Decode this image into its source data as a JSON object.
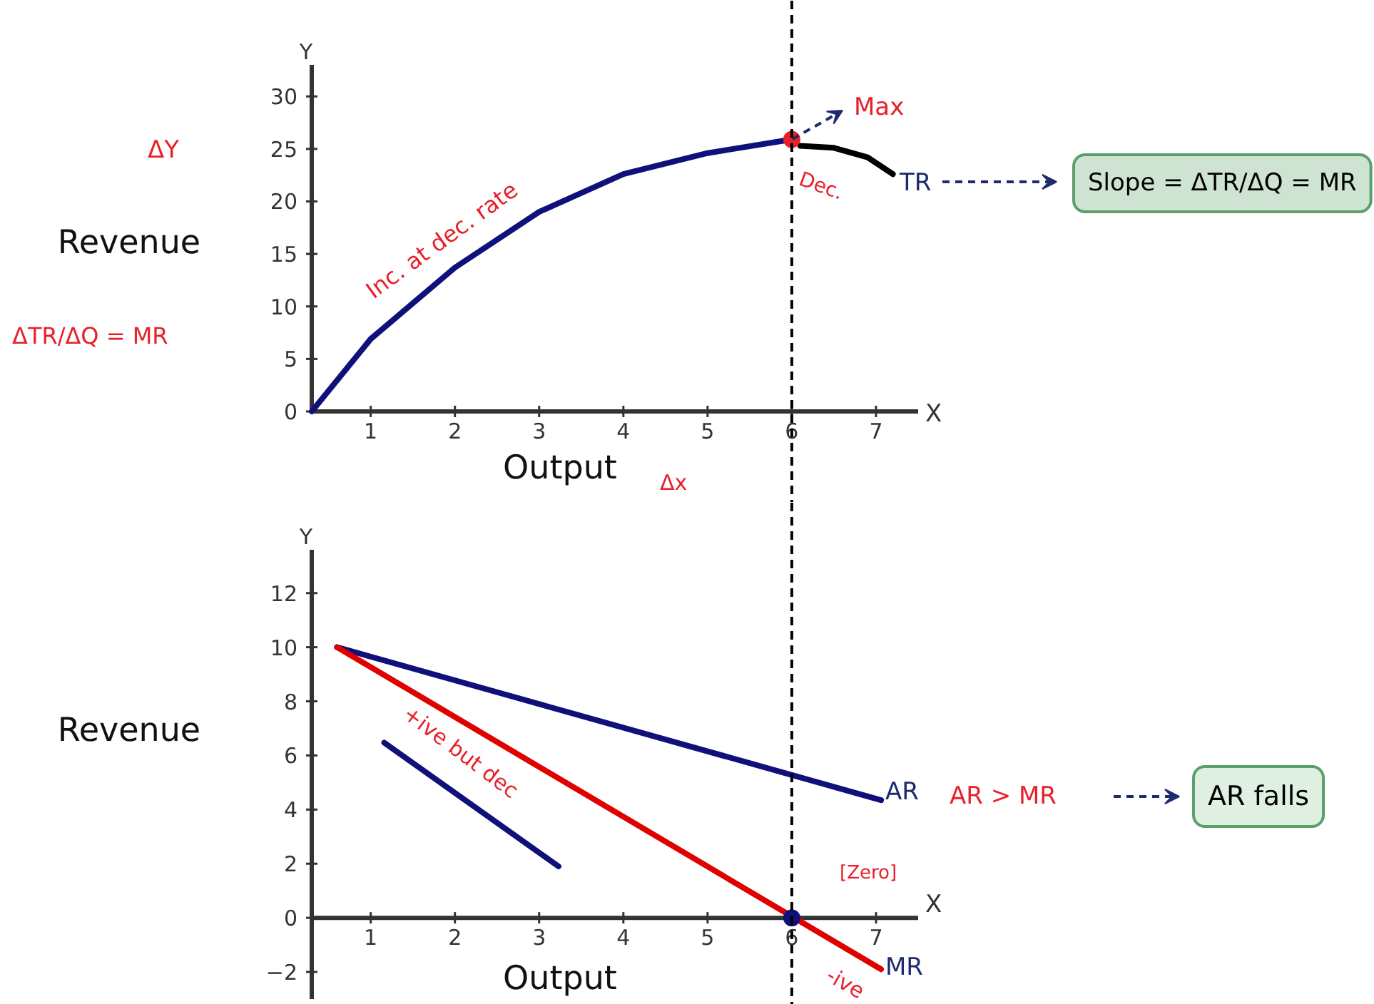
{
  "chart_data": [
    {
      "type": "line",
      "xlabel": "Output",
      "ylabel": "Revenue",
      "xlim": [
        0.3,
        7.5
      ],
      "ylim": [
        0,
        33
      ],
      "xticks": [
        1,
        2,
        3,
        4,
        5,
        6,
        7
      ],
      "yticks": [
        0,
        5,
        10,
        15,
        20,
        25,
        30
      ],
      "series": [
        {
          "color": "#10107a",
          "x": [
            0.3,
            1,
            2,
            3,
            4,
            5,
            6
          ],
          "values": [
            0,
            6.9,
            13.7,
            19,
            22.6,
            24.6,
            25.9
          ]
        },
        {
          "color": "#000000",
          "x": [
            6.1,
            6.5,
            6.9,
            7.2
          ],
          "values": [
            25.3,
            25.1,
            24.2,
            22.6
          ]
        },
        {
          "type": "scatter",
          "color": "#e8202a",
          "x": [
            6
          ],
          "values": [
            25.9
          ]
        }
      ],
      "ref_lines": [
        {
          "axis": "x",
          "value": 6,
          "color": "#000000",
          "line_style": "dashed"
        }
      ],
      "annotations": [
        "Max",
        "Dec.",
        "Inc. at dec. rate",
        "TR",
        "Slope = ΔTR/ΔQ = MR",
        "ΔY",
        "ΔTR/ΔQ = MR",
        "Δx",
        "Y",
        "X"
      ]
    },
    {
      "type": "line",
      "xlabel": "Output",
      "ylabel": "Revenue",
      "xlim": [
        0.3,
        7.5
      ],
      "ylim": [
        -3,
        13.6
      ],
      "xticks": [
        1,
        2,
        3,
        4,
        5,
        6,
        7
      ],
      "yticks": [
        -2,
        0,
        2,
        4,
        6,
        8,
        10,
        12
      ],
      "series": [
        {
          "color": "#10107a",
          "x": [
            0.6,
            7.06
          ],
          "values": [
            10,
            4.35
          ]
        },
        {
          "color": "#e00000",
          "x": [
            0.6,
            7.06
          ],
          "values": [
            10,
            -1.9
          ]
        },
        {
          "color": "#10107a",
          "x": [
            1.16,
            3.23
          ],
          "values": [
            6.47,
            1.9
          ]
        },
        {
          "type": "scatter",
          "color": "#10107a",
          "x": [
            6
          ],
          "values": [
            0
          ]
        }
      ],
      "ref_lines": [
        {
          "axis": "x",
          "value": 6,
          "color": "#000000",
          "line_style": "dashed"
        }
      ],
      "annotations": [
        "Y",
        "X",
        "+ive but dec",
        "[Zero]",
        "-ive",
        "AR",
        "MR",
        "AR > MR",
        "AR falls"
      ]
    }
  ]
}
